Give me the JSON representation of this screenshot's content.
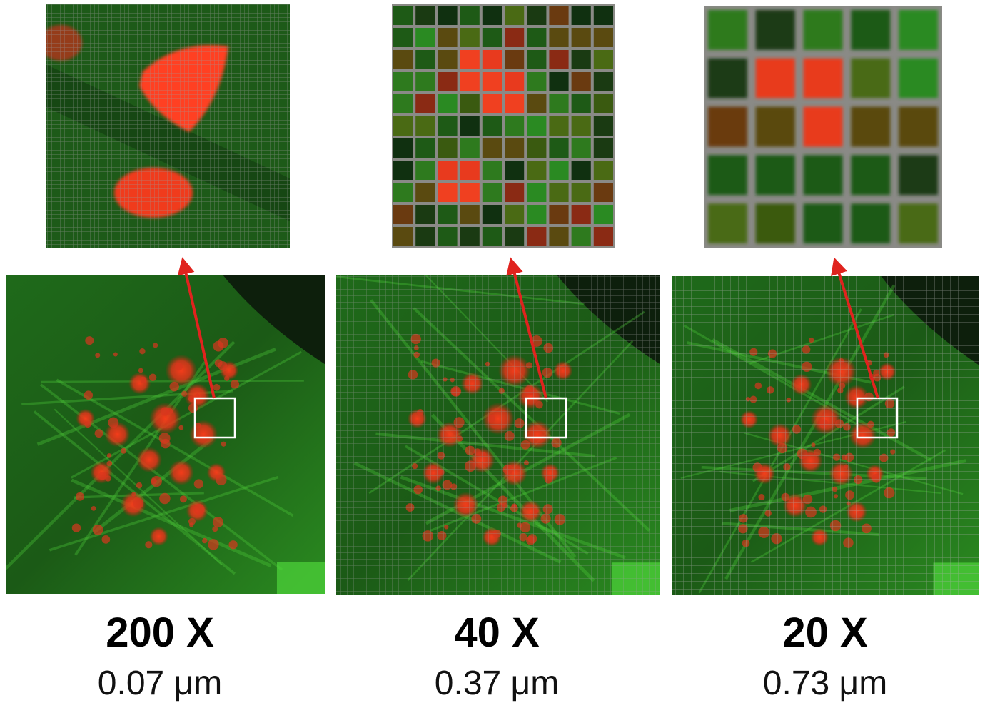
{
  "panels": [
    {
      "magnification": "200 X",
      "resolution": "0.07 μm"
    },
    {
      "magnification": "40 X",
      "resolution": "0.37 μm"
    },
    {
      "magnification": "20 X",
      "resolution": "0.73 μm"
    }
  ]
}
